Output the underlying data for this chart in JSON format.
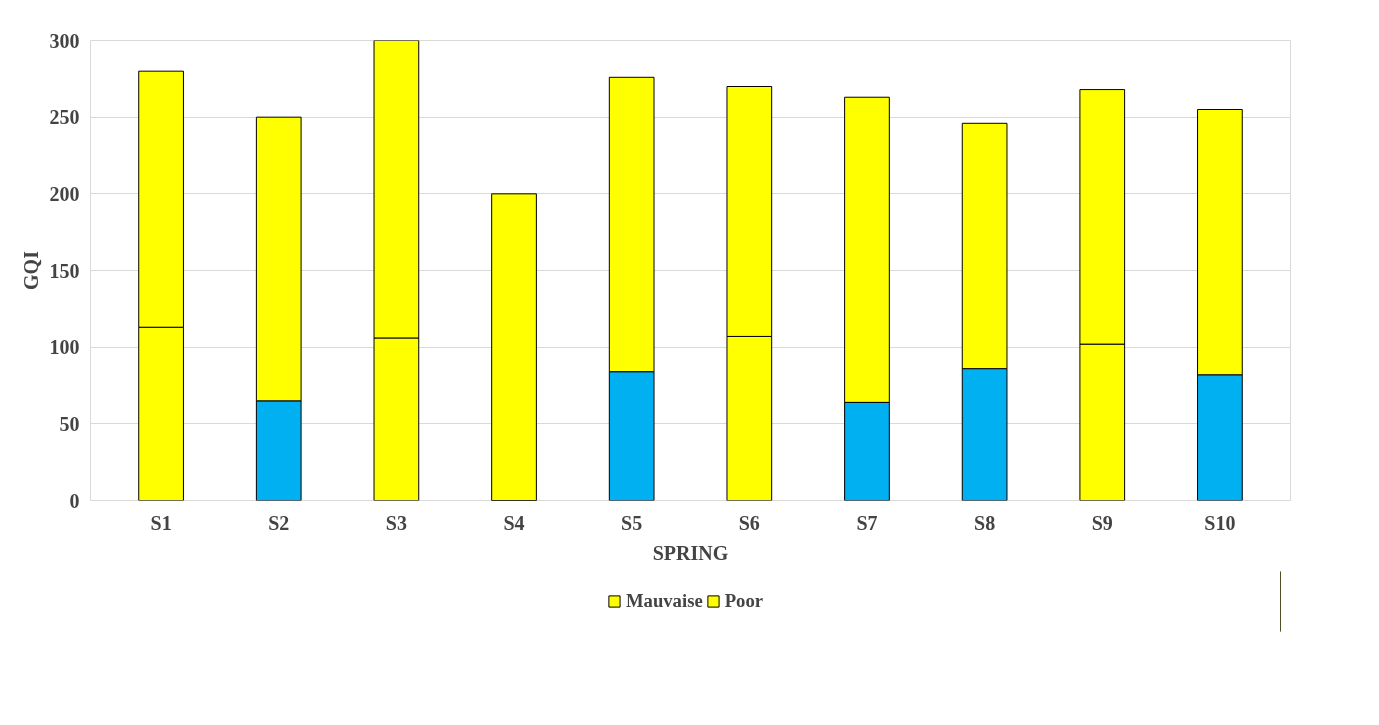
{
  "chart_data": {
    "type": "bar",
    "stacked": true,
    "xlabel": "SPRING",
    "ylabel": "GQI",
    "categories": [
      "S1",
      "S2",
      "S3",
      "S4",
      "S5",
      "S6",
      "S7",
      "S8",
      "S9",
      "S10"
    ],
    "series": [
      {
        "name": "Mauvaise",
        "color": "#ffff00",
        "colors": [
          "#ffff00",
          "#00b0f0",
          "#ffff00",
          "#ffff00",
          "#00b0f0",
          "#ffff00",
          "#00b0f0",
          "#00b0f0",
          "#ffff00",
          "#00b0f0"
        ],
        "values": [
          113,
          65,
          106,
          0,
          84,
          107,
          64,
          86,
          102,
          82
        ]
      },
      {
        "name": "Poor",
        "color": "#ffff00",
        "values": [
          167,
          185,
          194,
          200,
          192,
          163,
          199,
          160,
          166,
          173
        ]
      }
    ],
    "ylim": [
      0,
      300
    ],
    "yticks": [
      0,
      50,
      100,
      150,
      200,
      250,
      300
    ],
    "grid": "y",
    "legend": "bottom"
  }
}
